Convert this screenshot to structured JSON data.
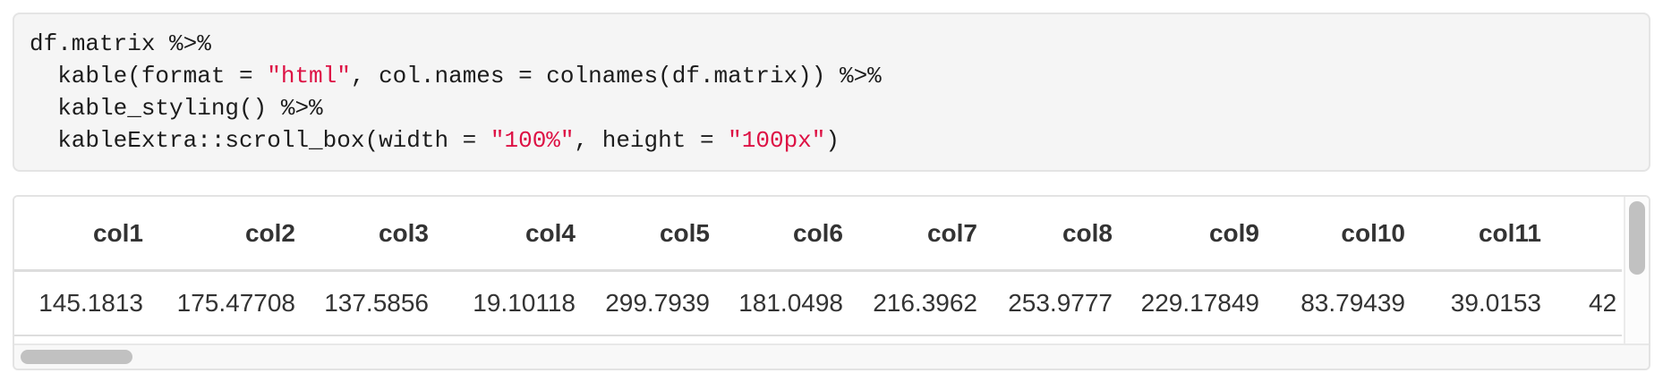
{
  "code_block": {
    "language": "r",
    "lines": [
      [
        {
          "t": "df.matrix %>%"
        }
      ],
      [
        {
          "t": "  kable(format = "
        },
        {
          "t": "\"html\"",
          "c": "string"
        },
        {
          "t": ", col.names = colnames(df.matrix)) %>%"
        }
      ],
      [
        {
          "t": "  kable_styling() %>%"
        }
      ],
      [
        {
          "t": "  kableExtra::scroll_box(width = "
        },
        {
          "t": "\"100%\"",
          "c": "string"
        },
        {
          "t": ", height = "
        },
        {
          "t": "\"100px\"",
          "c": "string"
        },
        {
          "t": ")"
        }
      ]
    ]
  },
  "table": {
    "headers": [
      "col1",
      "col2",
      "col3",
      "col4",
      "col5",
      "col6",
      "col7",
      "col8",
      "col9",
      "col10",
      "col11",
      ""
    ],
    "rows": [
      [
        "145.1813",
        "175.47708",
        "137.5856",
        "19.10118",
        "299.7939",
        "181.0498",
        "216.3962",
        "253.9777",
        "229.17849",
        "83.79439",
        "39.0153",
        "42"
      ]
    ]
  },
  "colors": {
    "code_string": "#dd1144",
    "code_text": "#1c1c1c",
    "code_background": "#f5f5f5",
    "table_text": "#333333",
    "table_border": "#dddddd",
    "box_border": "#e3e3e3",
    "scrollbar_thumb": "#c1c1c1"
  }
}
